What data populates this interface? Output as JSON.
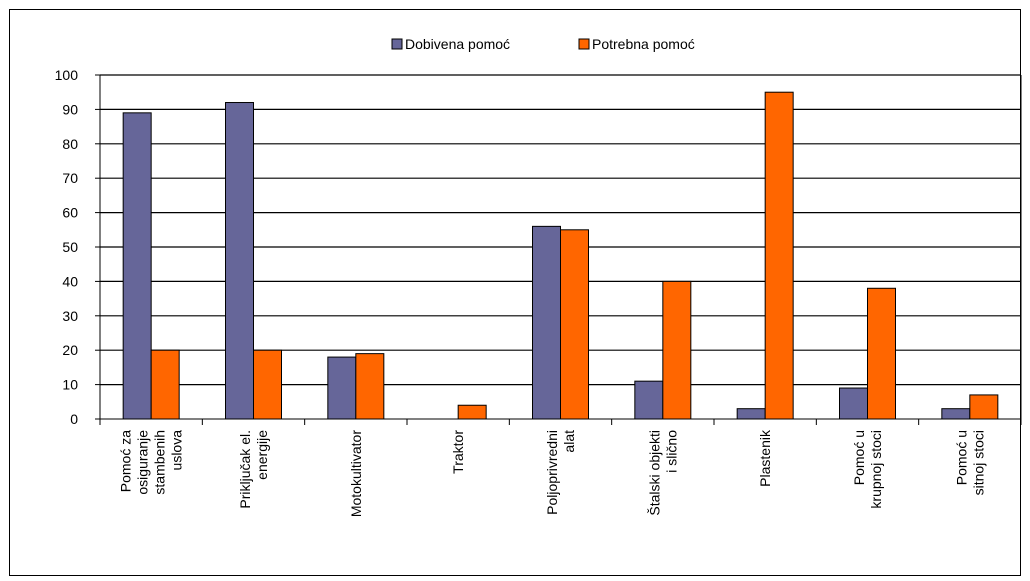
{
  "chart_data": {
    "type": "bar",
    "title": "",
    "xlabel": "",
    "ylabel": "",
    "ylim": [
      0,
      100
    ],
    "yticks": [
      0,
      10,
      20,
      30,
      40,
      50,
      60,
      70,
      80,
      90,
      100
    ],
    "grid": true,
    "legend_position": "top-center",
    "categories": [
      [
        "Pomoć za",
        "osiguranje",
        "stambenih",
        "uslova"
      ],
      [
        "Priključak el.",
        "energije"
      ],
      [
        "Motokultivator"
      ],
      [
        "Traktor"
      ],
      [
        "Poljoprivredni",
        "alat"
      ],
      [
        "Štalski objekti",
        "i slično"
      ],
      [
        "Plastenik"
      ],
      [
        "Pomoć u",
        "krupnoj stoci"
      ],
      [
        "Pomoć u",
        "sitnoj stoci"
      ]
    ],
    "series": [
      {
        "name": "Dobivena pomoć",
        "color": "#666699",
        "values": [
          89,
          92,
          18,
          0,
          56,
          11,
          3,
          9,
          3
        ]
      },
      {
        "name": "Potrebna pomoć",
        "color": "#FF6600",
        "values": [
          20,
          20,
          19,
          4,
          55,
          40,
          95,
          38,
          7
        ]
      }
    ]
  }
}
